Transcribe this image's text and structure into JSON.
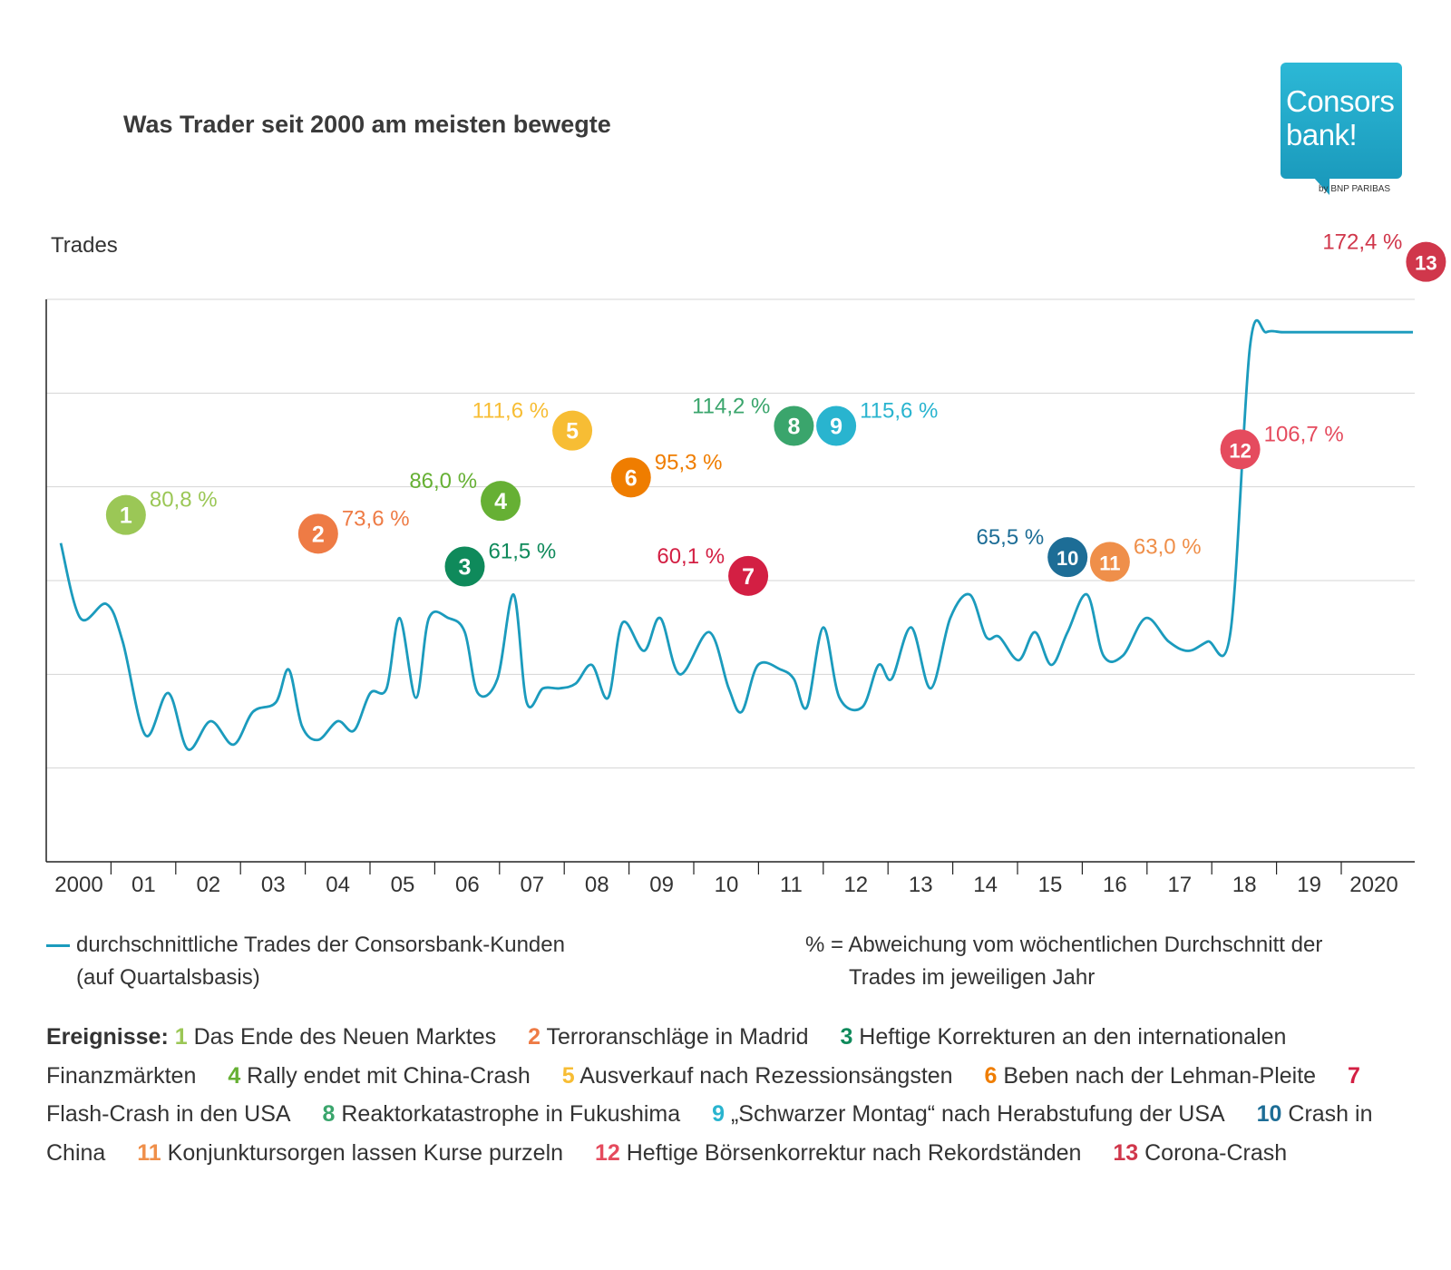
{
  "title": "Was Trader seit 2000 am meisten bewegte",
  "logo": {
    "text": "Consors\nbank!",
    "sub": "by BNP PARIBAS"
  },
  "legend": {
    "line_label_1": "durchschnittliche Trades der Consorsbank-Kunden",
    "line_label_2": "(auf Quartalsbasis)",
    "pct_label_1": "% = Abweichung vom wöchentlichen Durchschnitt der",
    "pct_label_2": "Trades im jeweiligen Jahr"
  },
  "events_label": "Ereignisse:",
  "chart_data": {
    "type": "line",
    "title": "Was Trader seit 2000 am meisten bewegte",
    "ylabel": "Trades",
    "xlabel": "",
    "ylim": [
      0,
      6
    ],
    "xlim": [
      2000,
      2021
    ],
    "x_ticks": [
      "2000",
      "01",
      "02",
      "03",
      "04",
      "05",
      "06",
      "07",
      "08",
      "09",
      "10",
      "11",
      "12",
      "13",
      "14",
      "15",
      "16",
      "17",
      "18",
      "19",
      "2020"
    ],
    "grid": true,
    "line_color": "#1b9bbd",
    "series": [
      {
        "name": "durchschnittliche Trades der Consorsbank-Kunden",
        "x": [
          2000.0,
          2000.3,
          2000.7,
          2000.95,
          2001.3,
          2001.65,
          2001.95,
          2002.3,
          2002.65,
          2002.95,
          2003.3,
          2003.5,
          2003.7,
          2003.95,
          2004.25,
          2004.5,
          2004.75,
          2005.0,
          2005.2,
          2005.45,
          2005.65,
          2005.95,
          2006.2,
          2006.4,
          2006.7,
          2006.95,
          2007.15,
          2007.4,
          2007.65,
          2007.9,
          2008.15,
          2008.4,
          2008.62,
          2008.95,
          2009.2,
          2009.5,
          2009.95,
          2010.25,
          2010.45,
          2010.7,
          2011.05,
          2011.25,
          2011.45,
          2011.7,
          2011.95,
          2012.3,
          2012.55,
          2012.75,
          2013.05,
          2013.35,
          2013.65,
          2013.95,
          2014.2,
          2014.4,
          2014.7,
          2014.95,
          2015.2,
          2015.45,
          2015.75,
          2016.0,
          2016.3,
          2016.65,
          2017.0,
          2017.3,
          2017.6,
          2017.95,
          2018.25,
          2018.5,
          2018.75,
          2019.05,
          2019.3,
          2019.55,
          2019.85,
          2020.1,
          2020.3,
          2020.55,
          2020.75
        ],
        "values": [
          3.4,
          2.6,
          2.75,
          2.35,
          1.35,
          1.8,
          1.2,
          1.5,
          1.25,
          1.6,
          1.7,
          2.05,
          1.45,
          1.3,
          1.5,
          1.4,
          1.8,
          1.85,
          2.6,
          1.75,
          2.6,
          2.6,
          2.45,
          1.8,
          1.95,
          2.85,
          1.7,
          1.85,
          1.85,
          1.9,
          2.1,
          1.75,
          2.55,
          2.25,
          2.6,
          2.0,
          2.45,
          1.85,
          1.6,
          2.1,
          2.05,
          1.95,
          1.65,
          2.5,
          1.75,
          1.65,
          2.1,
          1.95,
          2.5,
          1.85,
          2.6,
          2.85,
          2.4,
          2.4,
          2.15,
          2.45,
          2.1,
          2.45,
          2.85,
          2.2,
          2.2,
          2.6,
          2.35,
          2.25,
          2.35,
          2.45,
          5.5,
          5.65,
          5.65,
          5.65,
          5.65,
          5.65,
          5.65,
          5.65,
          5.65,
          5.65,
          5.65
        ]
      }
    ],
    "events": [
      {
        "num": "1",
        "pct": "80,8 %",
        "color": "#9bc756",
        "text": "Das Ende des Neuen Marktes",
        "x": 2001.0,
        "y": 3.7,
        "label_side": "right-up"
      },
      {
        "num": "2",
        "pct": "73,6 %",
        "color": "#ee7b45",
        "text": "Terroranschläge in Madrid",
        "x": 2003.95,
        "y": 3.5,
        "label_side": "right-up"
      },
      {
        "num": "3",
        "pct": "61,5 %",
        "color": "#0f8a5b",
        "text": "Heftige Korrekturen an den internationalen Finanzmärkten",
        "x": 2006.2,
        "y": 3.15,
        "label_side": "right-up"
      },
      {
        "num": "4",
        "pct": "86,0 %",
        "color": "#66b034",
        "text": "Rally endet mit China-Crash",
        "x": 2006.75,
        "y": 3.85,
        "label_side": "left-up"
      },
      {
        "num": "5",
        "pct": "111,6 %",
        "color": "#f7bd34",
        "text": "Ausverkauf nach Rezessionsängsten",
        "x": 2007.85,
        "y": 4.6,
        "label_side": "left-up"
      },
      {
        "num": "6",
        "pct": "95,3 %",
        "color": "#ef7d00",
        "text": "Beben nach der Lehman-Pleite",
        "x": 2008.75,
        "y": 4.1,
        "label_side": "right-up"
      },
      {
        "num": "7",
        "pct": "60,1 %",
        "color": "#d31f43",
        "text": "Flash-Crash in den USA",
        "x": 2010.55,
        "y": 3.05,
        "label_side": "left-up"
      },
      {
        "num": "8",
        "pct": "114,2 %",
        "color": "#3aa56c",
        "text": "Reaktorkatastrophe in Fukushima",
        "x": 2011.25,
        "y": 4.65,
        "label_side": "left-up"
      },
      {
        "num": "9",
        "pct": "115,6 %",
        "color": "#29b4cf",
        "text": "„Schwarzer Montag“ nach Herabstufung der USA",
        "x": 2011.9,
        "y": 4.65,
        "label_side": "right-up"
      },
      {
        "num": "10",
        "pct": "65,5 %",
        "color": "#1d6d96",
        "text": "Crash in China",
        "x": 2015.45,
        "y": 3.25,
        "label_side": "left-up"
      },
      {
        "num": "11",
        "pct": "63,0 %",
        "color": "#ef8f4a",
        "text": "Konjunktursorgen lassen Kurse purzeln",
        "x": 2016.1,
        "y": 3.2,
        "label_side": "right-up"
      },
      {
        "num": "12",
        "pct": "106,7 %",
        "color": "#e54b5e",
        "text": "Heftige Börsenkorrektur nach Rekordständen",
        "x": 2018.1,
        "y": 4.4,
        "label_side": "right-up"
      },
      {
        "num": "13",
        "pct": "172,4 %",
        "color": "#d0374b",
        "text": "Corona-Crash",
        "x": 2020.95,
        "y": 6.4,
        "label_side": "left-up"
      }
    ]
  }
}
